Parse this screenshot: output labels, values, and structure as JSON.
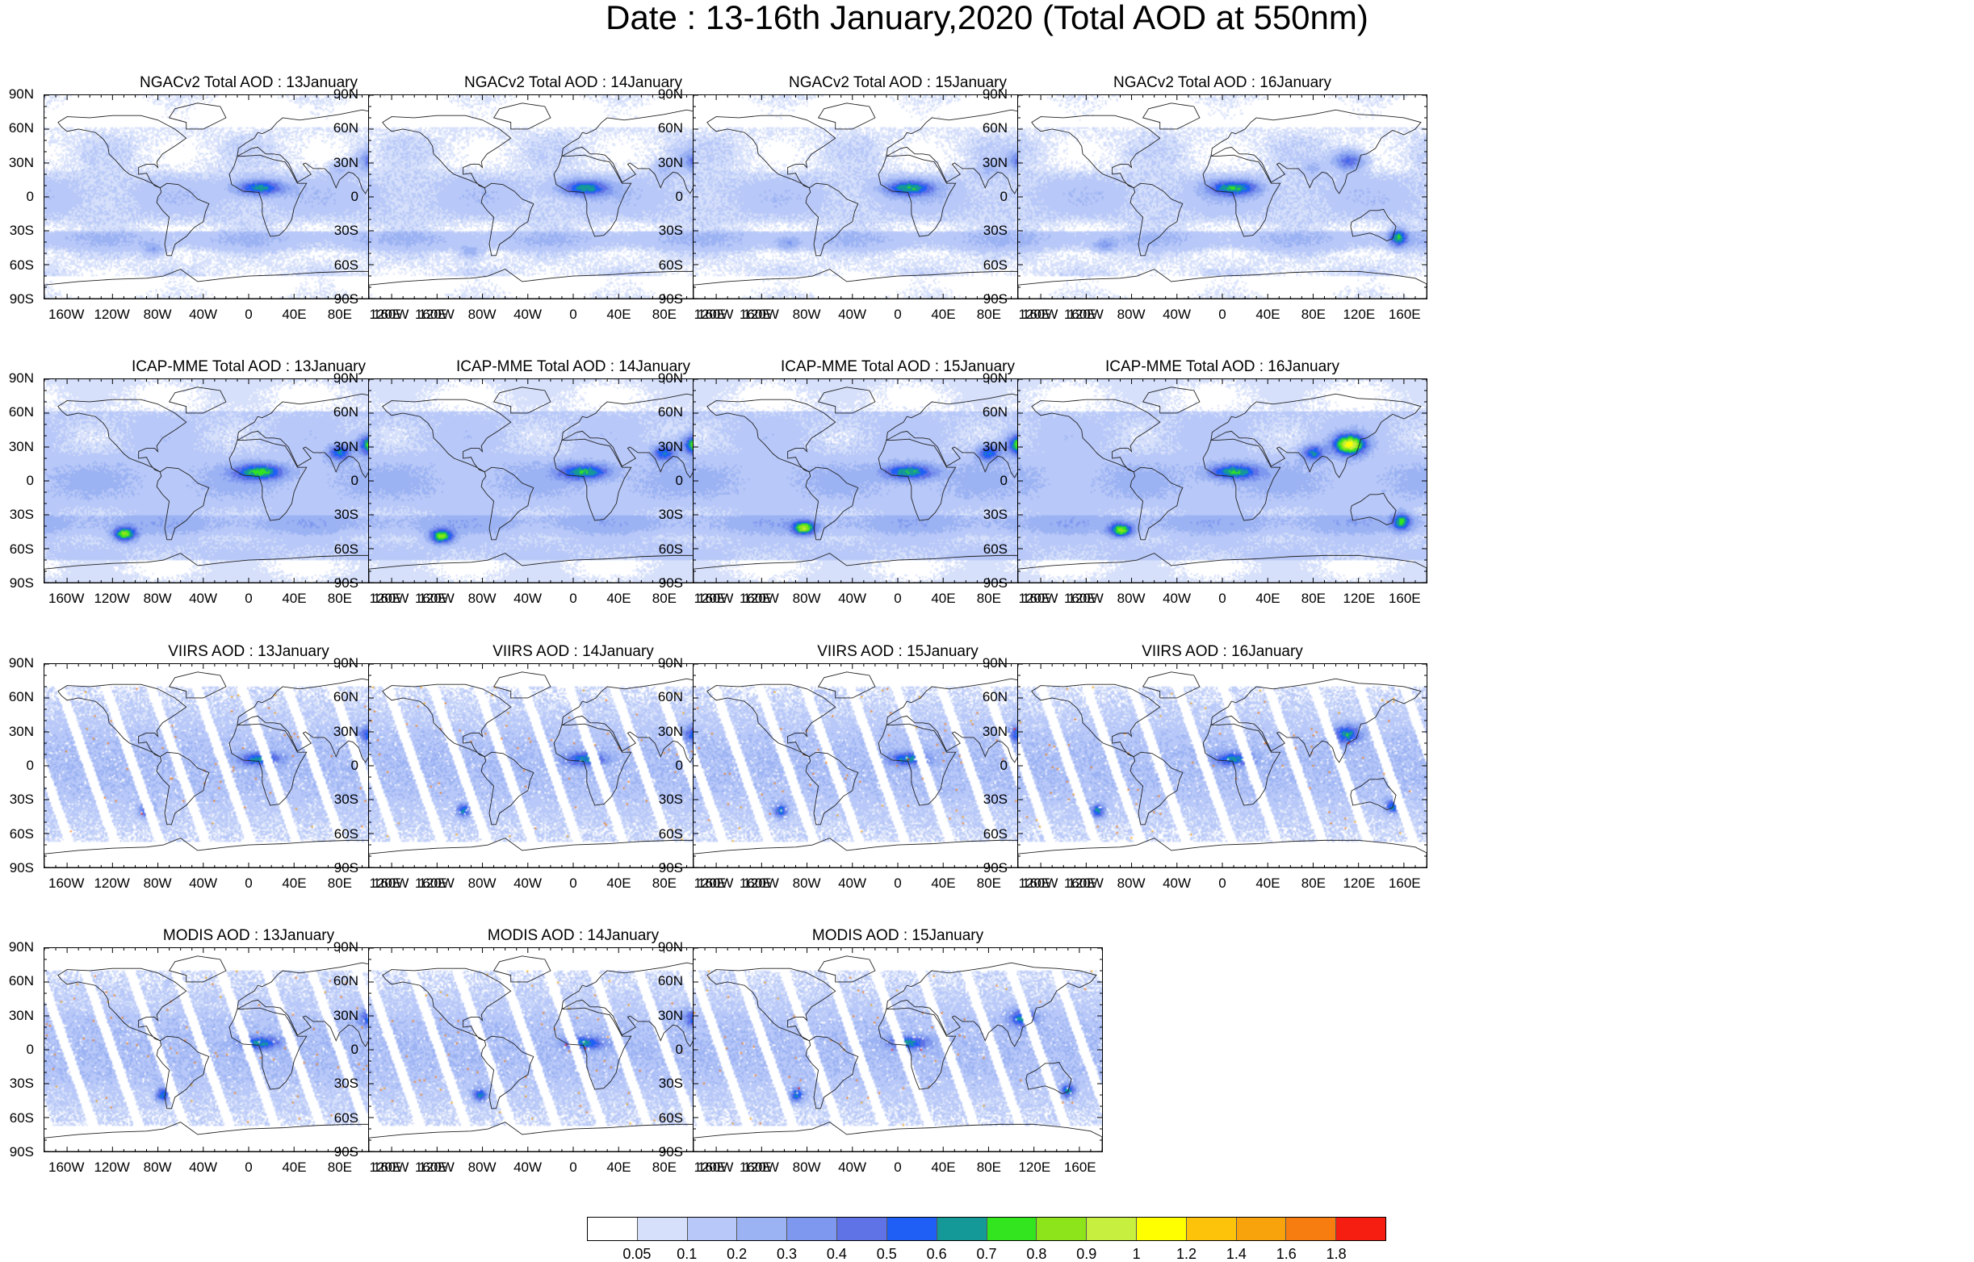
{
  "title": "Date : 13-16th January,2020 (Total AOD at 550nm)",
  "lat_labels": [
    "90N",
    "60N",
    "30N",
    "0",
    "30S",
    "60S",
    "90S"
  ],
  "lon_labels": [
    "160W",
    "120W",
    "80W",
    "40W",
    "0",
    "40E",
    "80E",
    "120E",
    "160E"
  ],
  "lon_values": [
    -160,
    -120,
    -80,
    -40,
    0,
    40,
    80,
    120,
    160
  ],
  "lat_values": [
    90,
    60,
    30,
    0,
    -30,
    -60,
    -90
  ],
  "panels": [
    {
      "title": "NGACv2 Total AOD : 13January",
      "kind": "model",
      "seed": 11,
      "row": 0,
      "col": 0
    },
    {
      "title": "NGACv2 Total AOD : 14January",
      "kind": "model",
      "seed": 12,
      "row": 0,
      "col": 1
    },
    {
      "title": "NGACv2 Total AOD : 15January",
      "kind": "model",
      "seed": 13,
      "row": 0,
      "col": 2
    },
    {
      "title": "NGACv2 Total AOD : 16January",
      "kind": "model",
      "seed": 14,
      "row": 0,
      "col": 3
    },
    {
      "title": "ICAP-MME Total AOD : 13January",
      "kind": "ensemble",
      "seed": 21,
      "row": 1,
      "col": 0
    },
    {
      "title": "ICAP-MME Total AOD : 14January",
      "kind": "ensemble",
      "seed": 22,
      "row": 1,
      "col": 1
    },
    {
      "title": "ICAP-MME Total AOD : 15January",
      "kind": "ensemble",
      "seed": 23,
      "row": 1,
      "col": 2
    },
    {
      "title": "ICAP-MME Total AOD : 16January",
      "kind": "ensemble",
      "seed": 24,
      "row": 1,
      "col": 3
    },
    {
      "title": "VIIRS AOD : 13January",
      "kind": "satellite",
      "seed": 31,
      "row": 2,
      "col": 0
    },
    {
      "title": "VIIRS AOD : 14January",
      "kind": "satellite",
      "seed": 32,
      "row": 2,
      "col": 1
    },
    {
      "title": "VIIRS AOD : 15January",
      "kind": "satellite",
      "seed": 33,
      "row": 2,
      "col": 2
    },
    {
      "title": "VIIRS AOD : 16January",
      "kind": "satellite",
      "seed": 34,
      "row": 2,
      "col": 3
    },
    {
      "title": "MODIS AOD : 13January",
      "kind": "satellite",
      "seed": 41,
      "row": 3,
      "col": 0
    },
    {
      "title": "MODIS AOD : 14January",
      "kind": "satellite",
      "seed": 42,
      "row": 3,
      "col": 1
    },
    {
      "title": "MODIS AOD : 15January",
      "kind": "satellite",
      "seed": 43,
      "row": 3,
      "col": 2
    }
  ],
  "colorbar": {
    "labels": [
      "0.05",
      "0.1",
      "0.2",
      "0.3",
      "0.4",
      "0.5",
      "0.6",
      "0.7",
      "0.8",
      "0.9",
      "1",
      "1.2",
      "1.4",
      "1.6",
      "1.8"
    ],
    "colors": [
      "#ffffff",
      "#d6e0fb",
      "#b8c8f8",
      "#9bb2f3",
      "#7e98ef",
      "#5f72e6",
      "#1f5ff5",
      "#159898",
      "#33e51f",
      "#8ee41a",
      "#c7ef3f",
      "#ffff00",
      "#fdc30a",
      "#f9a30c",
      "#f77d11",
      "#f51e10"
    ]
  }
}
